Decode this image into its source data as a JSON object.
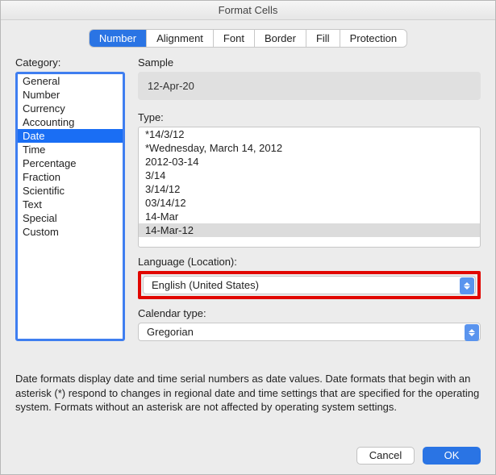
{
  "window": {
    "title": "Format Cells"
  },
  "tabs": {
    "items": [
      {
        "label": "Number",
        "active": true
      },
      {
        "label": "Alignment",
        "active": false
      },
      {
        "label": "Font",
        "active": false
      },
      {
        "label": "Border",
        "active": false
      },
      {
        "label": "Fill",
        "active": false
      },
      {
        "label": "Protection",
        "active": false
      }
    ]
  },
  "category": {
    "label": "Category:",
    "items": [
      {
        "label": "General",
        "selected": false
      },
      {
        "label": "Number",
        "selected": false
      },
      {
        "label": "Currency",
        "selected": false
      },
      {
        "label": "Accounting",
        "selected": false
      },
      {
        "label": "Date",
        "selected": true
      },
      {
        "label": "Time",
        "selected": false
      },
      {
        "label": "Percentage",
        "selected": false
      },
      {
        "label": "Fraction",
        "selected": false
      },
      {
        "label": "Scientific",
        "selected": false
      },
      {
        "label": "Text",
        "selected": false
      },
      {
        "label": "Special",
        "selected": false
      },
      {
        "label": "Custom",
        "selected": false
      }
    ]
  },
  "sample": {
    "label": "Sample",
    "value": "12-Apr-20"
  },
  "type": {
    "label": "Type:",
    "items": [
      {
        "label": "*14/3/12",
        "selected": false
      },
      {
        "label": "*Wednesday, March 14, 2012",
        "selected": false
      },
      {
        "label": "2012-03-14",
        "selected": false
      },
      {
        "label": "3/14",
        "selected": false
      },
      {
        "label": "3/14/12",
        "selected": false
      },
      {
        "label": "03/14/12",
        "selected": false
      },
      {
        "label": "14-Mar",
        "selected": false
      },
      {
        "label": "14-Mar-12",
        "selected": true
      }
    ]
  },
  "language": {
    "label": "Language (Location):",
    "value": "English (United States)",
    "highlighted": true
  },
  "calendar": {
    "label": "Calendar type:",
    "value": "Gregorian"
  },
  "description": "Date formats display date and time serial numbers as date values.  Date formats that begin with an asterisk (*) respond to changes in regional date and time settings that are specified for the operating system. Formats without an asterisk are not affected by operating system settings.",
  "buttons": {
    "cancel": "Cancel",
    "ok": "OK"
  },
  "colors": {
    "accent": "#2a74e4",
    "selection": "#1a6ef4",
    "highlight_border": "#e10600",
    "category_border": "#3f7ef0",
    "background": "#ececec"
  }
}
